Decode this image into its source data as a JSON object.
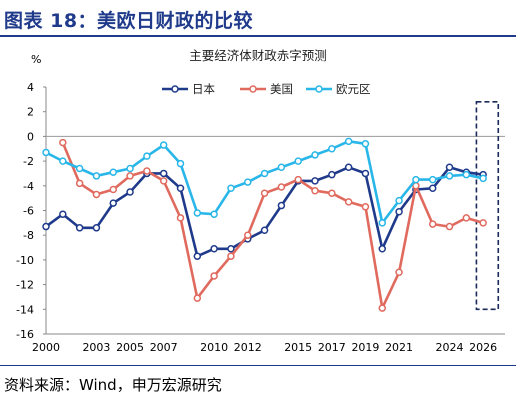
{
  "header": {
    "title": "图表 18：美欧日财政的比较"
  },
  "footer": {
    "source": "资料来源：Wind，申万宏源研究"
  },
  "chart_data": {
    "type": "line",
    "title": "主要经济体财政赤字预测",
    "ylabel": "%",
    "xlabel": "",
    "ylim": [
      -16,
      4
    ],
    "yticks": [
      4,
      2,
      0,
      -2,
      -4,
      -6,
      -8,
      -10,
      -12,
      -14,
      -16
    ],
    "xlim": [
      2000,
      2027.3
    ],
    "xticks": [
      2000,
      2003,
      2005,
      2007,
      2010,
      2012,
      2015,
      2017,
      2019,
      2021,
      2024,
      2026
    ],
    "legend_position": "top-center",
    "forecast_box": {
      "x_range": [
        2025.6,
        2026.9
      ],
      "y_range": [
        -14,
        2.8
      ]
    },
    "series": [
      {
        "name": "日本",
        "color": "#1f3a8a",
        "x": [
          2000,
          2001,
          2002,
          2003,
          2004,
          2005,
          2006,
          2007,
          2008,
          2009,
          2010,
          2011,
          2012,
          2013,
          2014,
          2015,
          2016,
          2017,
          2018,
          2019,
          2020,
          2021,
          2022,
          2023,
          2024,
          2025,
          2026
        ],
        "y": [
          -7.3,
          -6.3,
          -7.4,
          -7.4,
          -5.4,
          -4.5,
          -3.0,
          -3.0,
          -4.2,
          -9.7,
          -9.1,
          -9.1,
          -8.3,
          -7.6,
          -5.6,
          -3.6,
          -3.6,
          -3.1,
          -2.5,
          -3.0,
          -9.1,
          -6.1,
          -4.3,
          -4.2,
          -2.5,
          -2.9,
          -3.1
        ]
      },
      {
        "name": "美国",
        "color": "#e06a5e",
        "x": [
          2001,
          2002,
          2003,
          2004,
          2005,
          2006,
          2007,
          2008,
          2009,
          2010,
          2011,
          2012,
          2013,
          2014,
          2015,
          2016,
          2017,
          2018,
          2019,
          2020,
          2021,
          2022,
          2023,
          2024,
          2025,
          2026
        ],
        "y": [
          -0.5,
          -3.8,
          -4.7,
          -4.3,
          -3.2,
          -2.8,
          -3.6,
          -6.6,
          -13.1,
          -11.3,
          -9.7,
          -8.0,
          -4.6,
          -4.1,
          -3.5,
          -4.4,
          -4.6,
          -5.3,
          -5.7,
          -13.9,
          -11.0,
          -4.0,
          -7.1,
          -7.3,
          -6.6,
          -7.0
        ]
      },
      {
        "name": "欧元区",
        "color": "#29b6e8",
        "x": [
          2000,
          2001,
          2002,
          2003,
          2004,
          2005,
          2006,
          2007,
          2008,
          2009,
          2010,
          2011,
          2012,
          2013,
          2014,
          2015,
          2016,
          2017,
          2018,
          2019,
          2020,
          2021,
          2022,
          2023,
          2024,
          2025,
          2026
        ],
        "y": [
          -1.3,
          -2.0,
          -2.6,
          -3.2,
          -2.9,
          -2.6,
          -1.6,
          -0.7,
          -2.2,
          -6.2,
          -6.3,
          -4.2,
          -3.7,
          -3.0,
          -2.5,
          -2.0,
          -1.5,
          -1.0,
          -0.4,
          -0.6,
          -7.0,
          -5.2,
          -3.5,
          -3.5,
          -3.2,
          -3.1,
          -3.4
        ]
      }
    ]
  }
}
